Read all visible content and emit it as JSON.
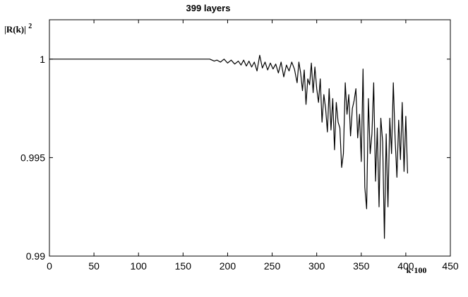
{
  "chart_data": {
    "type": "line",
    "title": "399 layers",
    "ylabel": "|R(k)|",
    "ylabel_superscript": "2",
    "xlabel": "k·100",
    "xlim": [
      0,
      450
    ],
    "ylim": [
      0.99,
      1.002
    ],
    "x_ticks": [
      0,
      50,
      100,
      150,
      200,
      250,
      300,
      350,
      400,
      450
    ],
    "y_ticks": [
      0.99,
      0.995,
      1
    ],
    "y_tick_labels": [
      "0.99",
      "0.995",
      "1"
    ],
    "grid": false,
    "colors": {
      "line": "#000000",
      "axes": "#000000",
      "background": "#ffffff"
    },
    "series": [
      {
        "x": [
          0,
          99,
          101,
          175,
          180,
          185,
          188,
          192,
          196,
          200,
          204,
          208,
          212,
          215,
          218,
          221,
          224,
          227,
          230,
          233,
          236,
          239,
          242,
          245,
          248,
          251,
          254,
          257,
          260,
          263,
          266,
          269,
          272,
          275,
          278,
          280,
          282,
          284,
          286,
          288,
          290,
          292,
          294,
          296,
          298,
          300,
          302,
          304,
          306,
          308,
          310,
          312,
          314,
          316,
          318,
          320,
          322,
          324,
          326,
          328,
          330,
          332,
          334,
          336,
          338,
          340,
          342,
          344,
          346,
          348,
          350,
          352,
          354,
          356,
          358,
          360,
          362,
          364,
          366,
          368,
          370,
          372,
          374,
          376,
          378,
          380,
          382,
          384,
          386,
          388,
          390,
          392,
          394,
          396,
          398,
          400,
          402
        ],
        "y": [
          1.0,
          1.0,
          1.0,
          1.0,
          1.0,
          0.9999,
          0.99995,
          0.99985,
          1.0,
          0.9998,
          0.99995,
          0.99975,
          0.9999,
          0.9997,
          0.99995,
          0.99965,
          0.9999,
          0.9996,
          0.99985,
          0.9994,
          1.0002,
          0.99955,
          0.99985,
          0.99945,
          0.9998,
          0.9995,
          0.99975,
          0.9993,
          0.99985,
          0.9991,
          0.9997,
          0.9994,
          0.99985,
          0.9995,
          0.9988,
          0.99985,
          0.9993,
          0.9984,
          0.99945,
          0.9977,
          0.999,
          0.9987,
          0.9998,
          0.9983,
          0.9996,
          0.9985,
          0.9978,
          0.999,
          0.9968,
          0.9982,
          0.9975,
          0.9963,
          0.9985,
          0.9964,
          0.998,
          0.9954,
          0.9978,
          0.9968,
          0.9965,
          0.9945,
          0.9952,
          0.9988,
          0.9972,
          0.9982,
          0.9961,
          0.9975,
          0.9979,
          0.9985,
          0.996,
          0.9972,
          0.9948,
          0.9995,
          0.9935,
          0.9924,
          0.998,
          0.9952,
          0.9962,
          0.9988,
          0.9938,
          0.9965,
          0.9925,
          0.997,
          0.9958,
          0.9909,
          0.9962,
          0.9925,
          0.997,
          0.9952,
          0.9988,
          0.996,
          0.994,
          0.9969,
          0.9949,
          0.9978,
          0.9943,
          0.9971,
          0.9942
        ]
      }
    ]
  }
}
